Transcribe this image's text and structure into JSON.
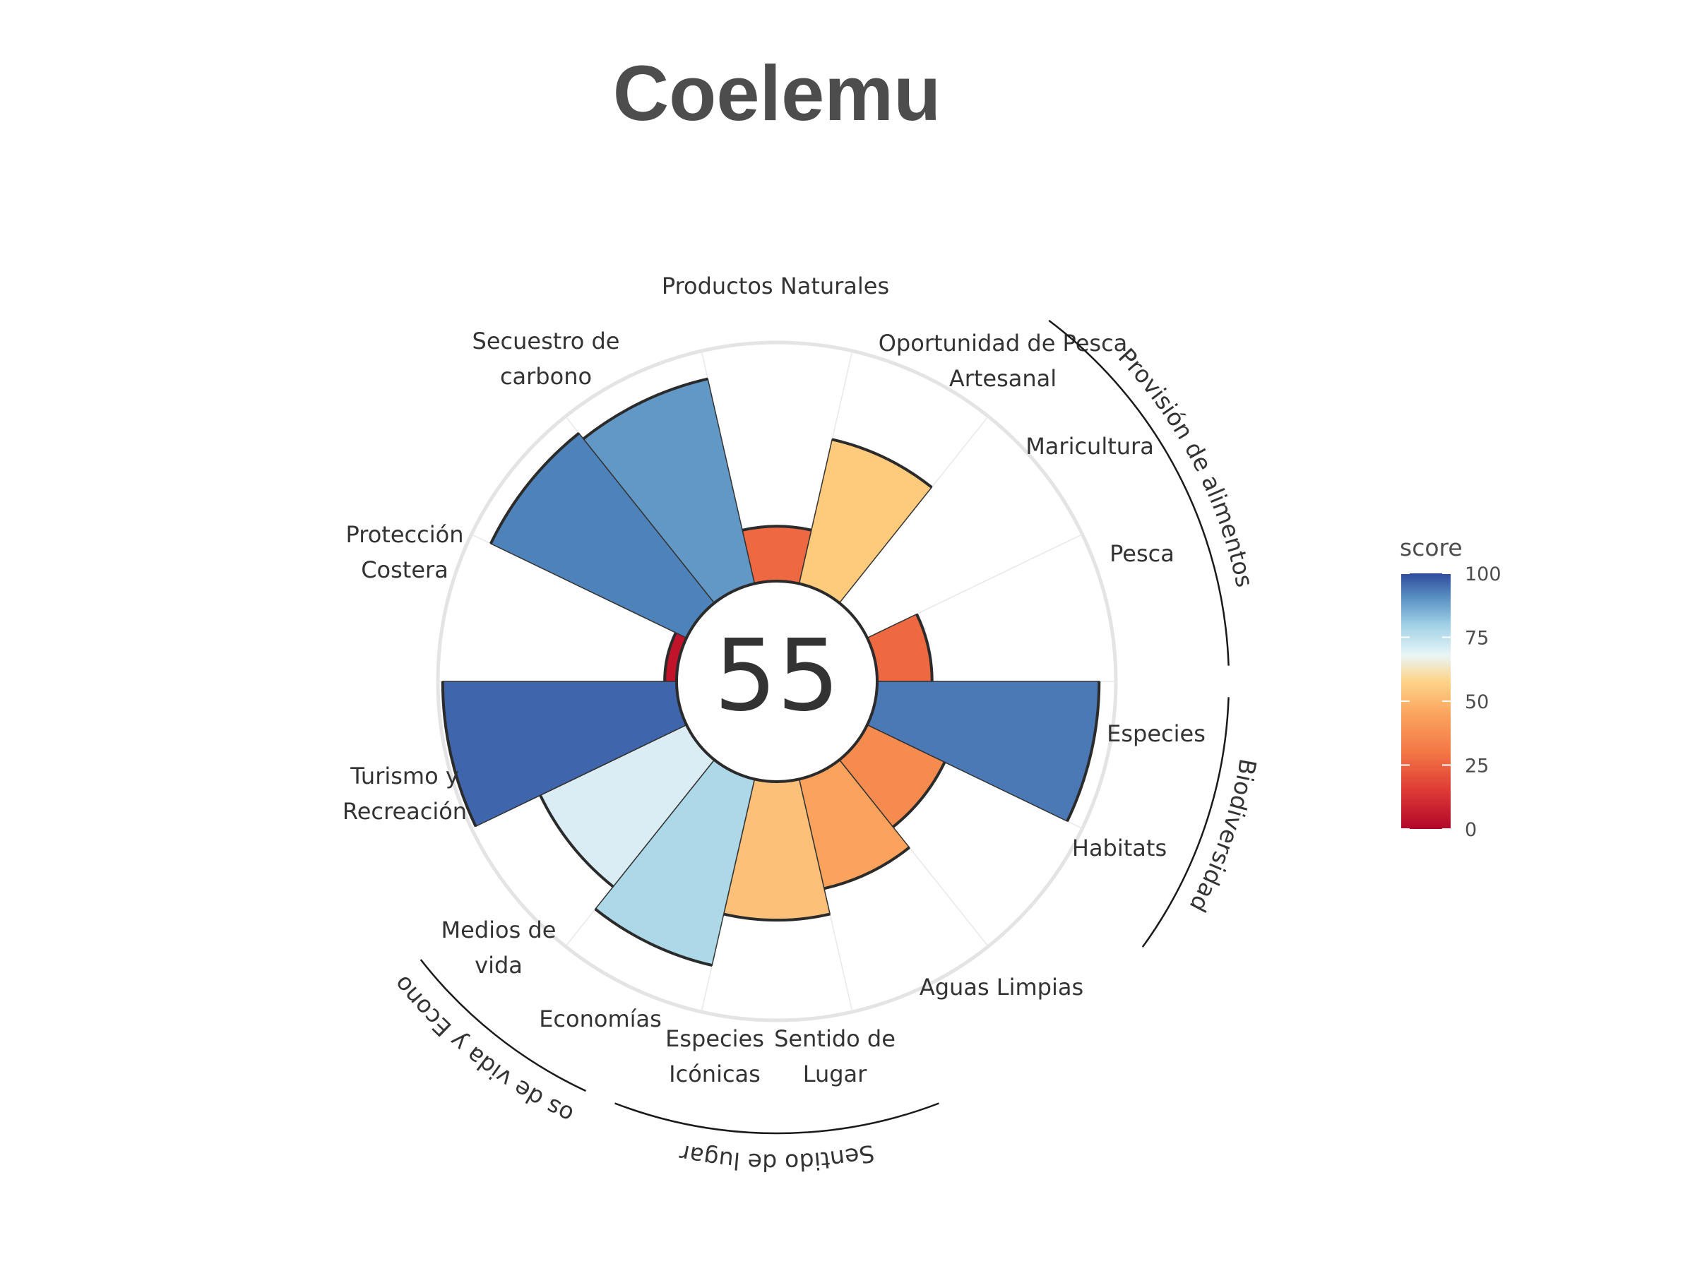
{
  "chart_data": {
    "type": "polar-bar",
    "title": "Coelemu",
    "overall_score": "55",
    "ylim": [
      0,
      100
    ],
    "grid": true,
    "goals": [
      {
        "label": "Productos Naturales",
        "value": 23,
        "color": "#EE6842"
      },
      {
        "label": "Oportunidad de Pesca Artesanal",
        "value": 62,
        "color": "#FDCB7B"
      },
      {
        "label": "Maricultura",
        "value": null
      },
      {
        "label": "Pesca",
        "value": 23,
        "color": "#EE6842"
      },
      {
        "label": "Especies",
        "value": 93,
        "color": "#4A79B6"
      },
      {
        "label": "Habitats",
        "value": 36,
        "color": "#F58B4F"
      },
      {
        "label": "Aguas Limpias",
        "value": 47,
        "color": "#FBA25C"
      },
      {
        "label": "Sentido de Lugar",
        "value": 58,
        "color": "#FDC078"
      },
      {
        "label": "Especies Icónicas",
        "value": 80,
        "color": "#ADD8E8"
      },
      {
        "label": "Economías",
        "value": 68,
        "color": "#DAEDF4"
      },
      {
        "label": "Medios de vida",
        "value": 98,
        "color": "#3F66AC"
      },
      {
        "label": "Turismo y Recreación",
        "value": 5,
        "color": "#C1132A"
      },
      {
        "label": "Protección Costera",
        "value": 91,
        "color": "#4E82BA"
      },
      {
        "label": "Secuestro de carbono",
        "value": 88,
        "color": "#6198C6"
      }
    ],
    "supra_goals": [
      {
        "label": "Provisión de alimentos"
      },
      {
        "label": "Biodiversidad"
      },
      {
        "label": "Sentido de lugar"
      },
      {
        "label": "Medios de vida y Economías"
      }
    ],
    "legend": {
      "title": "score",
      "placement": "right",
      "ticks": [
        "100",
        "75",
        "50",
        "25",
        "0"
      ],
      "color_stops": [
        {
          "value": 0,
          "color": "#B2062A"
        },
        {
          "value": 15,
          "color": "#DE3A35"
        },
        {
          "value": 30,
          "color": "#F37746"
        },
        {
          "value": 45,
          "color": "#FBA45E"
        },
        {
          "value": 58,
          "color": "#FDD58A"
        },
        {
          "value": 68,
          "color": "#E9F5F8"
        },
        {
          "value": 80,
          "color": "#9FD0E5"
        },
        {
          "value": 90,
          "color": "#5C93C4"
        },
        {
          "value": 100,
          "color": "#2F4B9E"
        }
      ]
    }
  }
}
